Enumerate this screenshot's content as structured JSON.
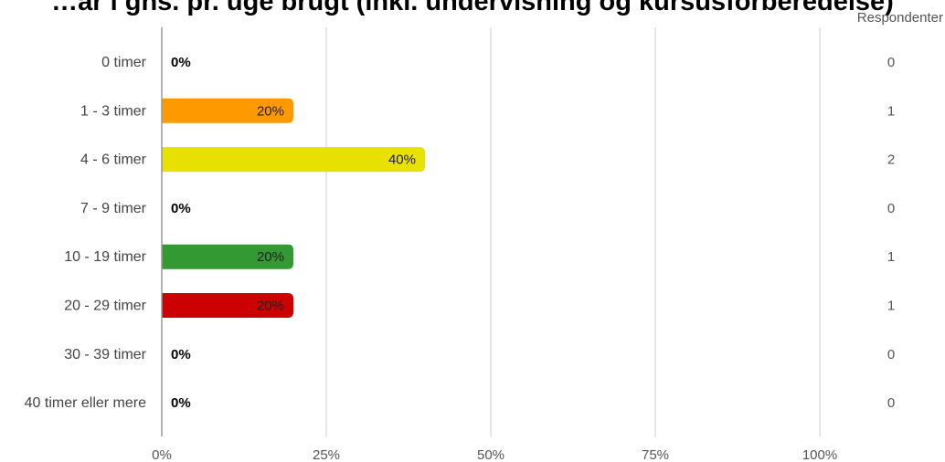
{
  "title": "…ar i gns. pr. uge brugt (inkl. undervisning og kursusforberedelse)",
  "respondents_header": "Respondenter",
  "chart_data": {
    "type": "bar",
    "orientation": "horizontal",
    "categories": [
      "0 timer",
      "1 - 3 timer",
      "4 - 6 timer",
      "7 - 9 timer",
      "10 - 19 timer",
      "20 - 29 timer",
      "30 - 39 timer",
      "40 timer eller mere"
    ],
    "values": [
      0,
      20,
      40,
      0,
      20,
      20,
      0,
      0
    ],
    "value_labels": [
      "0%",
      "20%",
      "40%",
      "0%",
      "20%",
      "20%",
      "0%",
      "0%"
    ],
    "respondents": [
      0,
      1,
      2,
      0,
      1,
      1,
      0,
      0
    ],
    "colors": [
      "#ff9900",
      "#ff9900",
      "#e8e000",
      "#e8e000",
      "#339933",
      "#cc0000",
      "#cc0000",
      "#cc0000"
    ],
    "x_ticks": [
      "0%",
      "25%",
      "50%",
      "75%",
      "100%"
    ],
    "xlim": [
      0,
      100
    ],
    "grid": true
  }
}
